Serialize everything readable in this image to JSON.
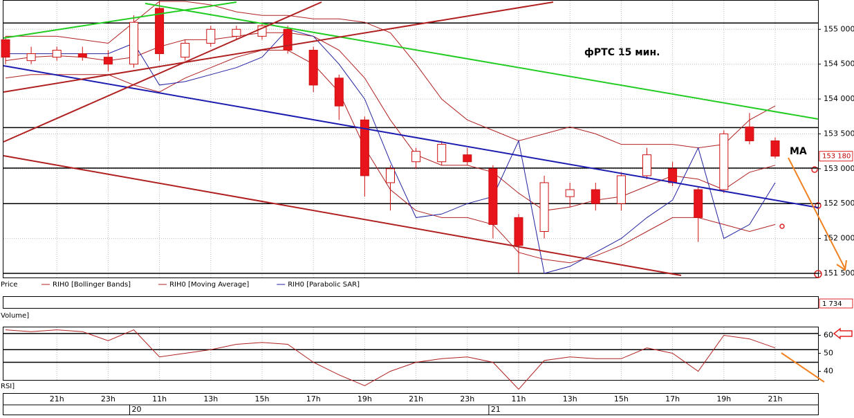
{
  "chart_data": [
    {
      "type": "candlestick",
      "title": "фРТС   15 мин.",
      "annotation": "МА",
      "axis_label": "Price",
      "categories": [
        null,
        null,
        "21h",
        null,
        "23h",
        null,
        "11h",
        null,
        "13h",
        null,
        "15h",
        null,
        "17h",
        null,
        "19h",
        null,
        "21h",
        null,
        "23h",
        null,
        "11h",
        null,
        "13h",
        null,
        "15h",
        null,
        "17h",
        null,
        "19h",
        null,
        "21h"
      ],
      "dates": [
        null,
        null,
        null,
        null,
        null,
        "20",
        null,
        null,
        null,
        null,
        null,
        null,
        null,
        null,
        null,
        null,
        null,
        null,
        null,
        "21",
        null,
        null,
        null,
        null,
        null,
        null,
        null,
        null,
        null,
        null,
        null
      ],
      "open": [
        154850,
        154550,
        154600,
        154650,
        154600,
        154500,
        155300,
        154600,
        154800,
        154900,
        154900,
        155000,
        154700,
        154300,
        153700,
        152800,
        153100,
        153100,
        153200,
        153000,
        152300,
        152100,
        152600,
        152700,
        152500,
        152900,
        153000,
        152700,
        152700,
        153600,
        153400
      ],
      "high": [
        154900,
        154750,
        154750,
        154750,
        154700,
        155200,
        155400,
        154850,
        155050,
        155050,
        155100,
        155050,
        154750,
        154350,
        153750,
        153050,
        153300,
        153400,
        153300,
        153050,
        152350,
        152900,
        152800,
        152800,
        152950,
        153300,
        153100,
        152750,
        153550,
        153800,
        153450
      ],
      "low": [
        154500,
        154500,
        154550,
        154550,
        154400,
        154450,
        154550,
        154550,
        154750,
        154850,
        154850,
        154650,
        154100,
        153700,
        152600,
        152400,
        153000,
        153050,
        153050,
        152000,
        151500,
        152000,
        152450,
        152400,
        152400,
        152850,
        152750,
        151950,
        152650,
        153350,
        153150
      ],
      "close": [
        154600,
        154650,
        154700,
        154600,
        154500,
        155100,
        154650,
        154800,
        155000,
        155000,
        155050,
        154700,
        154200,
        153900,
        152900,
        153000,
        153250,
        153350,
        153100,
        152200,
        151900,
        152800,
        152700,
        152500,
        152900,
        153200,
        152800,
        152300,
        153500,
        153400,
        153180
      ],
      "up_color": "#ffffff",
      "down_color": "#e8141c",
      "outline_color": "#cc1010",
      "series": [
        {
          "name": "RIH0 [Bollinger Bands]",
          "color": "#b02020",
          "values": [
            154900,
            154900,
            154900,
            154850,
            154800,
            155100,
            155400,
            155400,
            155350,
            155250,
            155200,
            155200,
            155150,
            155150,
            155100,
            154950,
            154500,
            154000,
            153700,
            153550,
            153400,
            153500,
            153600,
            153500,
            153350,
            153350,
            153350,
            153300,
            153350,
            153700,
            153900
          ],
          "values_lower": [
            154300,
            154350,
            154350,
            154350,
            154350,
            154200,
            154100,
            154300,
            154450,
            154600,
            154700,
            154700,
            154500,
            154100,
            153300,
            152700,
            152400,
            152300,
            152300,
            152200,
            151800,
            151700,
            151650,
            151750,
            151900,
            152100,
            152300,
            152300,
            152200,
            152100,
            152200
          ]
        },
        {
          "name": "RIH0 [Moving Average]",
          "color": "#b02020",
          "values": [
            154550,
            154600,
            154620,
            154600,
            154550,
            154600,
            154750,
            154850,
            154850,
            154900,
            154950,
            154950,
            154900,
            154700,
            154300,
            153700,
            153200,
            153050,
            153050,
            152950,
            152650,
            152400,
            152450,
            152550,
            152600,
            152750,
            152900,
            152850,
            152700,
            152950,
            153050
          ]
        },
        {
          "name": "RIH0 [Parabolic SAR]",
          "color": "#2020a0",
          "values": [
            154650,
            154650,
            154650,
            154650,
            154650,
            154800,
            154200,
            154250,
            154350,
            154450,
            154600,
            155000,
            154900,
            154500,
            154000,
            153100,
            152300,
            152350,
            152500,
            152600,
            153400,
            151500,
            151600,
            151800,
            152000,
            152300,
            152550,
            153300,
            152000,
            152200,
            152800
          ]
        }
      ],
      "levels": [
        155090,
        153590,
        153010,
        152500,
        151500
      ],
      "ylim": [
        151440,
        155410
      ],
      "yticks": [
        {
          "value": 151500,
          "label": "151 500"
        },
        {
          "value": 152000,
          "label": "152 000"
        },
        {
          "value": 152500,
          "label": "152 500"
        },
        {
          "value": 153000,
          "label": "153 000"
        },
        {
          "value": 153500,
          "label": "153 500"
        },
        {
          "value": 154000,
          "label": "154 000"
        },
        {
          "value": 154500,
          "label": "154 500"
        },
        {
          "value": 155000,
          "label": "155 000"
        }
      ],
      "last_price": {
        "value": 153180,
        "label": "153 180"
      },
      "grid": true
    },
    {
      "type": "bar",
      "axis_label": "Volume]",
      "last_value": {
        "value": 1734,
        "label": "1 734"
      }
    },
    {
      "type": "line",
      "axis_label": "RSI]",
      "color": "#b02020",
      "values": [
        63,
        62,
        63,
        62,
        57,
        63,
        48,
        50,
        52,
        55,
        56,
        55,
        45,
        38,
        32,
        40,
        45,
        47,
        48,
        45,
        30,
        46,
        48,
        47,
        47,
        53,
        50,
        40,
        60,
        58,
        53
      ],
      "levels": [
        61,
        52,
        45
      ],
      "ylim": [
        35.2,
        64.4
      ],
      "yticks": [
        40,
        50,
        60
      ],
      "grid": true
    }
  ]
}
